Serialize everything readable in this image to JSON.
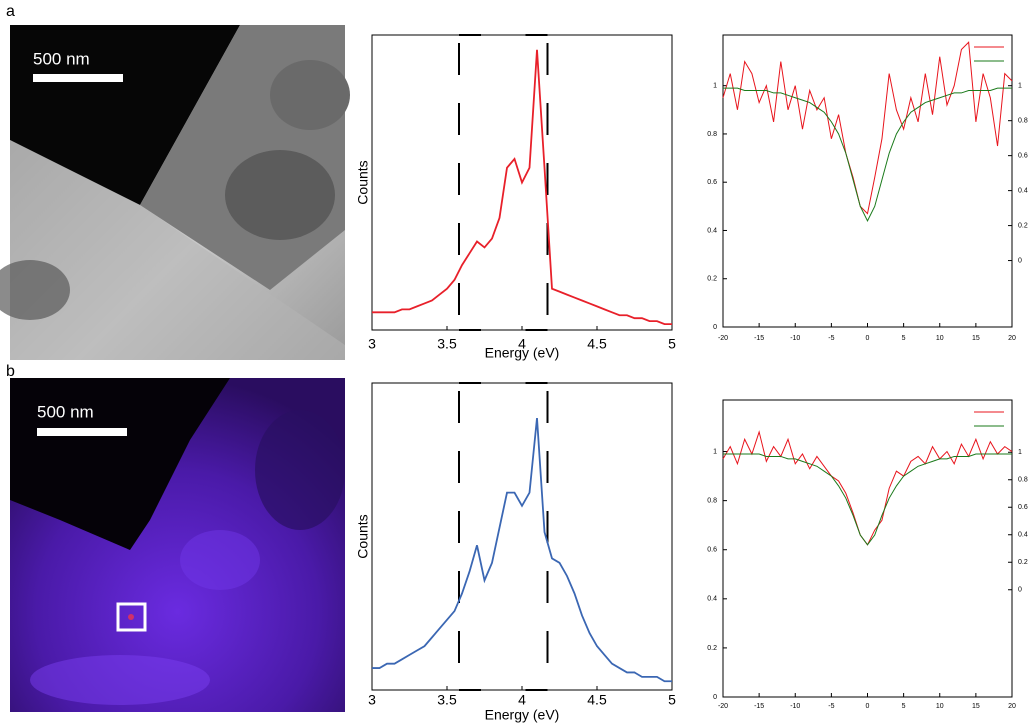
{
  "panels": [
    {
      "label": "a",
      "scale_bar": "500 nm"
    },
    {
      "label": "b",
      "scale_bar": "500 nm"
    }
  ],
  "chart_data": [
    {
      "type": "line",
      "xlabel": "Energy (eV)",
      "ylabel": "Counts",
      "x": [
        3.0,
        3.05,
        3.1,
        3.15,
        3.2,
        3.25,
        3.3,
        3.35,
        3.4,
        3.45,
        3.5,
        3.55,
        3.6,
        3.65,
        3.7,
        3.75,
        3.8,
        3.85,
        3.9,
        3.95,
        4.0,
        4.05,
        4.1,
        4.15,
        4.2,
        4.25,
        4.3,
        4.35,
        4.4,
        4.45,
        4.5,
        4.55,
        4.6,
        4.65,
        4.7,
        4.75,
        4.8,
        4.85,
        4.9,
        4.95,
        5.0
      ],
      "series": [
        {
          "color": "#e8202a",
          "values": [
            0.06,
            0.06,
            0.06,
            0.06,
            0.07,
            0.07,
            0.08,
            0.09,
            0.1,
            0.12,
            0.14,
            0.17,
            0.22,
            0.26,
            0.3,
            0.28,
            0.31,
            0.38,
            0.55,
            0.58,
            0.5,
            0.55,
            0.95,
            0.55,
            0.14,
            0.13,
            0.12,
            0.11,
            0.1,
            0.09,
            0.08,
            0.07,
            0.06,
            0.05,
            0.05,
            0.04,
            0.04,
            0.03,
            0.03,
            0.02,
            0.02
          ]
        }
      ],
      "xlim": [
        3,
        5
      ],
      "xticks": [
        3,
        3.5,
        4,
        4.5,
        5
      ],
      "ylim": [
        0,
        1
      ],
      "window": [
        3.58,
        4.17
      ]
    },
    {
      "type": "line",
      "x": [
        -20,
        -19,
        -18,
        -17,
        -16,
        -15,
        -14,
        -13,
        -12,
        -11,
        -10,
        -9,
        -8,
        -7,
        -6,
        -5,
        -4,
        -3,
        -2,
        -1,
        0,
        1,
        2,
        3,
        4,
        5,
        6,
        7,
        8,
        9,
        10,
        11,
        12,
        13,
        14,
        15,
        16,
        17,
        18,
        19,
        20
      ],
      "series": [
        {
          "color": "#e8141c",
          "values": [
            0.95,
            1.05,
            0.9,
            1.1,
            1.05,
            0.93,
            1.0,
            0.85,
            1.1,
            0.9,
            1.0,
            0.82,
            0.98,
            0.9,
            0.95,
            0.78,
            0.88,
            0.72,
            0.62,
            0.5,
            0.47,
            0.62,
            0.78,
            1.05,
            0.9,
            0.82,
            0.95,
            0.85,
            1.05,
            0.88,
            1.12,
            0.92,
            1.0,
            1.15,
            1.18,
            0.85,
            1.05,
            0.95,
            0.75,
            1.05,
            1.02
          ]
        },
        {
          "color": "#1a7a1a",
          "values": [
            0.99,
            0.99,
            0.99,
            0.98,
            0.98,
            0.98,
            0.98,
            0.97,
            0.97,
            0.96,
            0.95,
            0.94,
            0.93,
            0.91,
            0.89,
            0.85,
            0.8,
            0.72,
            0.61,
            0.5,
            0.44,
            0.5,
            0.61,
            0.72,
            0.8,
            0.85,
            0.89,
            0.91,
            0.93,
            0.94,
            0.95,
            0.96,
            0.97,
            0.97,
            0.98,
            0.98,
            0.98,
            0.98,
            0.99,
            0.99,
            0.99
          ]
        }
      ],
      "xlim": [
        -20,
        20
      ],
      "xticks": [
        -20,
        -15,
        -10,
        -5,
        0,
        5,
        10,
        15,
        20
      ],
      "ylim": [
        0,
        1.21
      ],
      "yticks": [
        0,
        0.2,
        0.4,
        0.6,
        0.8,
        1
      ],
      "y2lim": [
        -0.38,
        1.29
      ],
      "y2ticks": [
        0,
        0.2,
        0.4,
        0.6,
        0.8,
        1
      ]
    },
    {
      "type": "line",
      "xlabel": "Energy (eV)",
      "ylabel": "Counts",
      "x": [
        3.0,
        3.05,
        3.1,
        3.15,
        3.2,
        3.25,
        3.3,
        3.35,
        3.4,
        3.45,
        3.5,
        3.55,
        3.6,
        3.65,
        3.7,
        3.75,
        3.8,
        3.85,
        3.9,
        3.95,
        4.0,
        4.05,
        4.1,
        4.15,
        4.2,
        4.25,
        4.3,
        4.35,
        4.4,
        4.45,
        4.5,
        4.55,
        4.6,
        4.65,
        4.7,
        4.75,
        4.8,
        4.85,
        4.9,
        4.95,
        5.0
      ],
      "series": [
        {
          "color": "#3b67b3",
          "values": [
            0.05,
            0.05,
            0.06,
            0.06,
            0.07,
            0.08,
            0.09,
            0.1,
            0.12,
            0.14,
            0.16,
            0.18,
            0.22,
            0.27,
            0.33,
            0.25,
            0.29,
            0.37,
            0.45,
            0.45,
            0.42,
            0.45,
            0.62,
            0.36,
            0.3,
            0.29,
            0.26,
            0.22,
            0.17,
            0.13,
            0.1,
            0.08,
            0.06,
            0.05,
            0.04,
            0.04,
            0.03,
            0.03,
            0.03,
            0.02,
            0.02
          ]
        }
      ],
      "xlim": [
        3,
        5
      ],
      "xticks": [
        3,
        3.5,
        4,
        4.5,
        5
      ],
      "ylim": [
        0,
        0.7
      ],
      "window": [
        3.58,
        4.17
      ]
    },
    {
      "type": "line",
      "x": [
        -20,
        -19,
        -18,
        -17,
        -16,
        -15,
        -14,
        -13,
        -12,
        -11,
        -10,
        -9,
        -8,
        -7,
        -6,
        -5,
        -4,
        -3,
        -2,
        -1,
        0,
        1,
        2,
        3,
        4,
        5,
        6,
        7,
        8,
        9,
        10,
        11,
        12,
        13,
        14,
        15,
        16,
        17,
        18,
        19,
        20
      ],
      "series": [
        {
          "color": "#e8141c",
          "values": [
            0.97,
            1.02,
            0.95,
            1.05,
            0.99,
            1.08,
            0.96,
            1.02,
            0.98,
            1.05,
            0.95,
            0.99,
            0.93,
            0.98,
            0.94,
            0.9,
            0.88,
            0.83,
            0.75,
            0.66,
            0.62,
            0.68,
            0.72,
            0.85,
            0.92,
            0.9,
            0.96,
            0.98,
            0.95,
            1.02,
            0.97,
            1.0,
            0.95,
            1.03,
            0.98,
            1.05,
            0.97,
            1.04,
            0.99,
            1.02,
            1.0
          ]
        },
        {
          "color": "#1a7a1a",
          "values": [
            0.99,
            0.99,
            0.99,
            0.99,
            0.99,
            0.99,
            0.98,
            0.98,
            0.98,
            0.97,
            0.97,
            0.96,
            0.95,
            0.94,
            0.92,
            0.9,
            0.86,
            0.81,
            0.74,
            0.66,
            0.62,
            0.66,
            0.74,
            0.81,
            0.86,
            0.9,
            0.92,
            0.94,
            0.95,
            0.96,
            0.97,
            0.97,
            0.98,
            0.98,
            0.98,
            0.99,
            0.99,
            0.99,
            0.99,
            0.99,
            0.99
          ]
        }
      ],
      "xlim": [
        -20,
        20
      ],
      "xticks": [
        -20,
        -15,
        -10,
        -5,
        0,
        5,
        10,
        15,
        20
      ],
      "ylim": [
        0,
        1.21
      ],
      "yticks": [
        0,
        0.2,
        0.4,
        0.6,
        0.8,
        1
      ],
      "y2lim": [
        -0.78,
        1.38
      ],
      "y2ticks": [
        0,
        0.2,
        0.4,
        0.6,
        0.8,
        1
      ]
    }
  ]
}
